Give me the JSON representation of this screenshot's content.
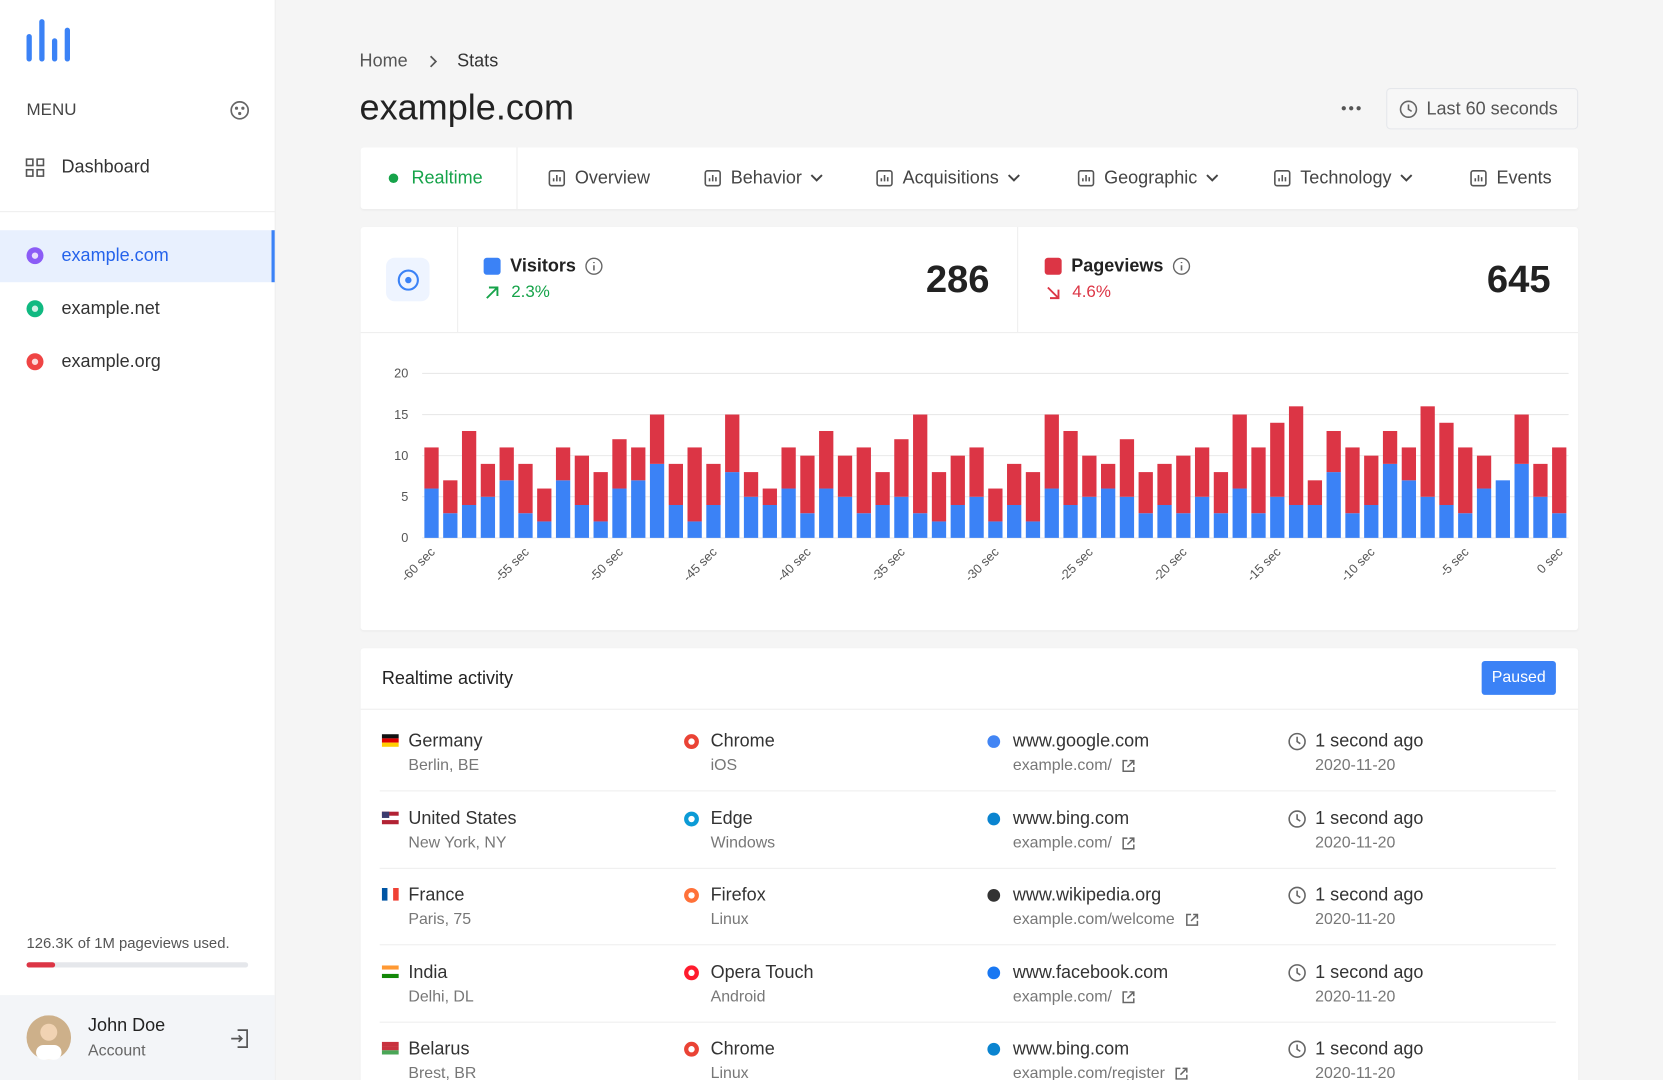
{
  "sidebar": {
    "menu": "MENU",
    "nav": [
      "Dashboard"
    ],
    "sites": [
      "example.com",
      "example.net",
      "example.org"
    ],
    "usage": "126.3K of 1M pageviews used.",
    "user": {
      "name": "John Doe",
      "role": "Account"
    }
  },
  "header": {
    "breadcrumb": [
      "Home",
      "Stats"
    ],
    "title": "example.com",
    "range": "Last 60 seconds"
  },
  "tabs": [
    "Realtime",
    "Overview",
    "Behavior",
    "Acquisitions",
    "Geographic",
    "Technology",
    "Events"
  ],
  "stats": [
    {
      "change": "2.3%",
      "value": 286
    },
    {
      "change": "4.6%",
      "value": 645
    }
  ],
  "chart_data": {
    "type": "bar",
    "stacked": true,
    "grid": true,
    "categories": [
      "-60 sec",
      null,
      null,
      null,
      null,
      "-55 sec",
      null,
      null,
      null,
      null,
      "-50 sec",
      null,
      null,
      null,
      null,
      "-45 sec",
      null,
      null,
      null,
      null,
      "-40 sec",
      null,
      null,
      null,
      null,
      "-35 sec",
      null,
      null,
      null,
      null,
      "-30 sec",
      null,
      null,
      null,
      null,
      "-25 sec",
      null,
      null,
      null,
      null,
      "-20 sec",
      null,
      null,
      null,
      null,
      "-15 sec",
      null,
      null,
      null,
      null,
      "-10 sec",
      null,
      null,
      null,
      null,
      "-5 sec",
      null,
      null,
      null,
      null,
      "0 sec"
    ],
    "series": [
      {
        "name": "Visitors",
        "color": "#3b82f6",
        "values": [
          6,
          3,
          4,
          5,
          7,
          3,
          2,
          7,
          4,
          2,
          6,
          7,
          9,
          4,
          2,
          4,
          8,
          5,
          4,
          6,
          3,
          6,
          5,
          3,
          4,
          5,
          3,
          2,
          4,
          5,
          2,
          4,
          2,
          6,
          4,
          5,
          6,
          5,
          3,
          4,
          3,
          5,
          3,
          6,
          3,
          5,
          4,
          4,
          8,
          3,
          4,
          9,
          7,
          5,
          4,
          3,
          6,
          7,
          9,
          5,
          3
        ]
      },
      {
        "name": "Pageviews",
        "color": "#dc3545",
        "values": [
          5,
          4,
          9,
          4,
          4,
          6,
          4,
          4,
          6,
          6,
          6,
          4,
          6,
          5,
          9,
          5,
          7,
          3,
          2,
          5,
          7,
          7,
          5,
          8,
          4,
          7,
          12,
          6,
          6,
          6,
          4,
          5,
          6,
          9,
          9,
          5,
          3,
          7,
          5,
          5,
          7,
          6,
          5,
          9,
          8,
          9,
          12,
          3,
          5,
          8,
          6,
          4,
          4,
          11,
          10,
          8,
          4,
          0,
          6,
          4,
          8
        ]
      }
    ],
    "ylim": [
      0,
      20
    ],
    "yticks": [
      0,
      5,
      10,
      15,
      20
    ]
  },
  "activity": {
    "title": "Realtime activity",
    "status": "Paused",
    "rows": [
      {
        "country": "Germany",
        "city": "Berlin, BE",
        "browser": "Chrome",
        "os": "iOS",
        "referrer": "www.google.com",
        "page": "example.com/",
        "time": "1 second ago",
        "date": "2020-11-20"
      },
      {
        "country": "United States",
        "city": "New York, NY",
        "browser": "Edge",
        "os": "Windows",
        "referrer": "www.bing.com",
        "page": "example.com/",
        "time": "1 second ago",
        "date": "2020-11-20"
      },
      {
        "country": "France",
        "city": "Paris, 75",
        "browser": "Firefox",
        "os": "Linux",
        "referrer": "www.wikipedia.org",
        "page": "example.com/welcome",
        "time": "1 second ago",
        "date": "2020-11-20"
      },
      {
        "country": "India",
        "city": "Delhi, DL",
        "browser": "Opera Touch",
        "os": "Android",
        "referrer": "www.facebook.com",
        "page": "example.com/",
        "time": "1 second ago",
        "date": "2020-11-20"
      },
      {
        "country": "Belarus",
        "city": "Brest, BR",
        "browser": "Chrome",
        "os": "Linux",
        "referrer": "www.bing.com",
        "page": "example.com/register",
        "time": "1 second ago",
        "date": "2020-11-20"
      }
    ]
  }
}
